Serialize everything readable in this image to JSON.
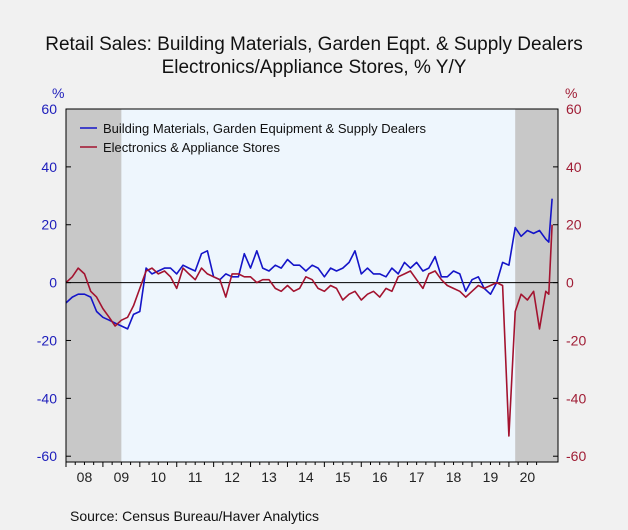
{
  "title": {
    "line1": "Retail Sales: Building Materials, Garden Eqpt. & Supply Dealers",
    "line2": "Electronics/Appliance Stores, % Y/Y"
  },
  "units": {
    "left": "%",
    "right": "%"
  },
  "source": "Source:  Census Bureau/Haver Analytics",
  "colors": {
    "building": "#1414c8",
    "electronics": "#a3132f",
    "recession_shade": "#c8c8c8",
    "plot_bg": "#eef6fd",
    "left_axis": "#1d1dbb",
    "right_axis": "#a01d35"
  },
  "chart_data": {
    "type": "line",
    "title": "Retail Sales: Building Materials, Garden Eqpt. & Supply Dealers Electronics/Appliance Stores, % Y/Y",
    "xlabel": "",
    "ylabel": "%",
    "y2label": "%",
    "ylim": [
      -62,
      60
    ],
    "y2lim": [
      -62,
      60
    ],
    "yticks": [
      60,
      40,
      20,
      0,
      -20,
      -40,
      -60
    ],
    "y2ticks": [
      60,
      40,
      20,
      0,
      -20,
      -40,
      -60
    ],
    "xlim": [
      2008.0,
      2021.33
    ],
    "xtick_labels": [
      "08",
      "09",
      "10",
      "11",
      "12",
      "13",
      "14",
      "15",
      "16",
      "17",
      "18",
      "19",
      "20"
    ],
    "recessions": [
      [
        2008.0,
        2009.5
      ],
      [
        2020.17,
        2021.33
      ]
    ],
    "zero_line": true,
    "legend": "top-left",
    "series": [
      {
        "name": "Building Materials, Garden Equipment & Supply Dealers",
        "axis": "left",
        "x": [
          2008.0,
          2008.17,
          2008.33,
          2008.5,
          2008.67,
          2008.83,
          2009.0,
          2009.17,
          2009.33,
          2009.5,
          2009.67,
          2009.83,
          2010.0,
          2010.17,
          2010.33,
          2010.5,
          2010.67,
          2010.83,
          2011.0,
          2011.17,
          2011.33,
          2011.5,
          2011.67,
          2011.83,
          2012.0,
          2012.17,
          2012.33,
          2012.5,
          2012.67,
          2012.83,
          2013.0,
          2013.17,
          2013.33,
          2013.5,
          2013.67,
          2013.83,
          2014.0,
          2014.17,
          2014.33,
          2014.5,
          2014.67,
          2014.83,
          2015.0,
          2015.17,
          2015.33,
          2015.5,
          2015.67,
          2015.83,
          2016.0,
          2016.17,
          2016.33,
          2016.5,
          2016.67,
          2016.83,
          2017.0,
          2017.17,
          2017.33,
          2017.5,
          2017.67,
          2017.83,
          2018.0,
          2018.17,
          2018.33,
          2018.5,
          2018.67,
          2018.83,
          2019.0,
          2019.17,
          2019.33,
          2019.5,
          2019.67,
          2019.83,
          2020.0,
          2020.17,
          2020.33,
          2020.5,
          2020.67,
          2020.83,
          2021.0,
          2021.08,
          2021.17
        ],
        "values": [
          -7,
          -5,
          -4,
          -4,
          -5,
          -10,
          -12,
          -13,
          -14,
          -15,
          -16,
          -11,
          -10,
          5,
          3,
          4,
          5,
          5,
          3,
          6,
          5,
          4,
          10,
          11,
          2,
          1,
          3,
          2,
          2,
          10,
          5,
          11,
          5,
          4,
          6,
          5,
          8,
          6,
          6,
          4,
          6,
          5,
          2,
          5,
          4,
          5,
          7,
          11,
          3,
          5,
          3,
          3,
          2,
          5,
          3,
          7,
          5,
          7,
          4,
          5,
          9,
          2,
          2,
          4,
          3,
          -3,
          1,
          2,
          -2,
          -4,
          0,
          7,
          6,
          19,
          16,
          18,
          17,
          18,
          15,
          14,
          29
        ]
      },
      {
        "name": "Electronics & Appliance Stores",
        "axis": "right",
        "x": [
          2008.0,
          2008.17,
          2008.33,
          2008.5,
          2008.67,
          2008.83,
          2009.0,
          2009.17,
          2009.33,
          2009.5,
          2009.67,
          2009.83,
          2010.0,
          2010.17,
          2010.33,
          2010.5,
          2010.67,
          2010.83,
          2011.0,
          2011.17,
          2011.33,
          2011.5,
          2011.67,
          2011.83,
          2012.0,
          2012.17,
          2012.33,
          2012.5,
          2012.67,
          2012.83,
          2013.0,
          2013.17,
          2013.33,
          2013.5,
          2013.67,
          2013.83,
          2014.0,
          2014.17,
          2014.33,
          2014.5,
          2014.67,
          2014.83,
          2015.0,
          2015.17,
          2015.33,
          2015.5,
          2015.67,
          2015.83,
          2016.0,
          2016.17,
          2016.33,
          2016.5,
          2016.67,
          2016.83,
          2017.0,
          2017.17,
          2017.33,
          2017.5,
          2017.67,
          2017.83,
          2018.0,
          2018.17,
          2018.33,
          2018.5,
          2018.67,
          2018.83,
          2019.0,
          2019.17,
          2019.33,
          2019.5,
          2019.67,
          2019.83,
          2020.0,
          2020.17,
          2020.33,
          2020.5,
          2020.67,
          2020.83,
          2021.0,
          2021.08,
          2021.17
        ],
        "values": [
          0,
          2,
          5,
          3,
          -3,
          -5,
          -9,
          -12,
          -15,
          -13,
          -12,
          -8,
          -2,
          4,
          5,
          3,
          4,
          2,
          -2,
          5,
          3,
          1,
          5,
          3,
          2,
          1,
          -5,
          3,
          3,
          2,
          2,
          0,
          1,
          1,
          -2,
          -3,
          -1,
          -3,
          -2,
          2,
          1,
          -2,
          -3,
          -1,
          -2,
          -6,
          -4,
          -3,
          -6,
          -4,
          -3,
          -5,
          -2,
          -3,
          2,
          3,
          4,
          1,
          -2,
          3,
          4,
          1,
          -1,
          -2,
          -3,
          -5,
          -3,
          -1,
          -2,
          -1,
          0,
          -1,
          -53,
          -10,
          -4,
          -6,
          -3,
          -16,
          -3,
          -4,
          20
        ]
      }
    ]
  }
}
